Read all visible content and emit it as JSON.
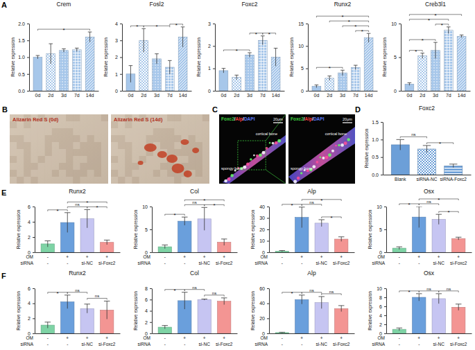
{
  "panel_labels": [
    "A",
    "B",
    "C",
    "D",
    "E",
    "F"
  ],
  "images": [
    {
      "caption": "Alizarin Red S (0d)"
    },
    {
      "caption": "Alizarin Red S (14d)"
    },
    {
      "caption_parts": [
        "Foxc2",
        "/",
        "Alp",
        "/",
        "DAPI"
      ],
      "scale_bar": "20μm",
      "labels": [
        "cortical bone",
        "spongy bone"
      ]
    },
    {
      "caption_parts": [
        "Foxc2",
        "/",
        "Alp",
        "/",
        "DAPI"
      ],
      "scale_bar": "20μm",
      "labels": [
        "cortical bone",
        "spongy bone"
      ]
    }
  ],
  "chart_data": [
    {
      "type": "bar",
      "title": "Crem",
      "y_label": "Relative expression",
      "categories": [
        "0d",
        "2d",
        "3d",
        "7d",
        "14d"
      ],
      "values": [
        1.0,
        1.1,
        1.2,
        1.22,
        1.6
      ],
      "errors": [
        0.05,
        0.3,
        0.05,
        0.05,
        0.15
      ],
      "color": "#a7c7ea",
      "ylim": [
        0,
        2
      ],
      "yticks": [
        {
          "value": 0,
          "label": "0.0"
        },
        {
          "value": 0.5,
          "label": "0.5"
        },
        {
          "value": 1,
          "label": "1.0"
        },
        {
          "value": 1.5,
          "label": "1.5"
        },
        {
          "value": 2,
          "label": "2.0"
        }
      ],
      "annotations": [
        {
          "from": 0,
          "to": 4,
          "text": "*"
        }
      ]
    },
    {
      "type": "bar",
      "title": "Fosl2",
      "y_label": "Relative expression",
      "categories": [
        "0d",
        "2d",
        "3d",
        "7d",
        "14d"
      ],
      "values": [
        1.0,
        3.0,
        1.9,
        1.4,
        3.2
      ],
      "errors": [
        0.5,
        0.7,
        0.3,
        0.4,
        0.6
      ],
      "color": "#a7c7ea",
      "ylim": [
        0,
        4
      ],
      "yticks": [
        0,
        1,
        2,
        3,
        4
      ],
      "annotations": [
        {
          "from": 0,
          "to": 1,
          "text": "*"
        },
        {
          "from": 1,
          "to": 3,
          "text": "*"
        },
        {
          "from": 3,
          "to": 4,
          "text": "*"
        }
      ]
    },
    {
      "type": "bar",
      "title": "Foxc2",
      "y_label": "Relative expression",
      "categories": [
        "0d",
        "2d",
        "3d",
        "7d",
        "14d"
      ],
      "values": [
        0.9,
        0.6,
        1.6,
        2.25,
        1.5
      ],
      "errors": [
        0.1,
        0.1,
        0.1,
        0.2,
        0.4
      ],
      "color": "#a7c7ea",
      "ylim": [
        0,
        3
      ],
      "yticks": [
        0,
        1,
        2,
        3
      ],
      "annotations": [
        {
          "from": 0,
          "to": 2,
          "text": "*"
        },
        {
          "from": 2,
          "to": 3,
          "text": "*"
        },
        {
          "from": 3,
          "to": 4,
          "text": "*"
        }
      ]
    },
    {
      "type": "bar",
      "title": "Runx2",
      "y_label": "Relative expression",
      "categories": [
        "0d",
        "2d",
        "3d",
        "7d",
        "14d"
      ],
      "values": [
        1.0,
        2.8,
        4.0,
        5.2,
        11.8
      ],
      "errors": [
        0.3,
        0.5,
        0.6,
        0.5,
        1.0
      ],
      "color": "#a7c7ea",
      "ylim": [
        0,
        15
      ],
      "yticks": [
        0,
        5,
        10,
        15
      ],
      "annotations": [
        {
          "from": 3,
          "to": 4,
          "text": "*"
        },
        {
          "from": 2,
          "to": 4,
          "text": "*"
        },
        {
          "from": 0,
          "to": 2,
          "text": "*"
        },
        {
          "from": 1,
          "to": 4,
          "text": "*"
        },
        {
          "from": 0,
          "to": 4,
          "text": "*"
        }
      ]
    },
    {
      "type": "bar",
      "title": "Creb3l1",
      "y_label": "Relative expression",
      "categories": [
        "0d",
        "2d",
        "3d",
        "7d",
        "14d"
      ],
      "values": [
        1.0,
        5.2,
        6.0,
        9.0,
        8.1
      ],
      "errors": [
        0.2,
        0.4,
        1.2,
        0.5,
        0.2
      ],
      "color": "#a7c7ea",
      "ylim": [
        0,
        10
      ],
      "yticks": [
        0,
        5,
        10
      ],
      "annotations": [
        {
          "from": 0,
          "to": 1,
          "text": "*"
        },
        {
          "from": 2,
          "to": 3,
          "text": "*"
        },
        {
          "from": 0,
          "to": 2,
          "text": "*"
        },
        {
          "from": 0,
          "to": 3,
          "text": "*"
        },
        {
          "from": 0,
          "to": 4,
          "text": "*"
        }
      ]
    },
    {
      "type": "bar",
      "title": "Foxc2",
      "y_label": "Relative expression",
      "categories": [
        "Blank",
        "siRNA-NC",
        "siRNA-Foxc2"
      ],
      "values": [
        0.85,
        0.73,
        0.25
      ],
      "errors": [
        0.15,
        0.1,
        0.05
      ],
      "color": "#6c9fd8",
      "ylim": [
        0,
        1.5
      ],
      "yticks": [
        {
          "value": 0,
          "label": "0.0"
        },
        {
          "value": 0.5,
          "label": "0.5"
        },
        {
          "value": 1,
          "label": "1.0"
        },
        {
          "value": 1.5,
          "label": "1.5"
        }
      ],
      "annotations": [
        {
          "from": 0,
          "to": 1,
          "text": "ns"
        },
        {
          "from": 1,
          "to": 2,
          "text": "*"
        }
      ]
    },
    {
      "type": "bar",
      "title": "Runx2",
      "y_label": "Relative expression",
      "x_rows": [
        {
          "label": "OM",
          "values": [
            "-",
            "+",
            "+",
            "+"
          ]
        },
        {
          "label": "siRNA",
          "values": [
            "-",
            "-",
            "si-NC",
            "si-Foxc2"
          ]
        }
      ],
      "values": [
        1.1,
        3.9,
        4.4,
        1.3
      ],
      "errors": [
        0.4,
        1.3,
        1.2,
        0.3
      ],
      "colors": [
        "#7ed3a5",
        "#6a9fdc",
        "#c6c5f2",
        "#f39593"
      ],
      "ylim": [
        0,
        6
      ],
      "yticks": [
        0,
        2,
        4,
        6
      ],
      "annotations": [
        {
          "from": 0,
          "to": 1,
          "text": "*"
        },
        {
          "from": 1,
          "to": 2,
          "text": "ns"
        },
        {
          "from": 2,
          "to": 3,
          "text": "*"
        },
        {
          "from": 1,
          "to": 3,
          "text": "*"
        }
      ]
    },
    {
      "type": "bar",
      "title": "Col",
      "y_label": "Relative expression",
      "x_rows": [
        {
          "label": "OM",
          "values": [
            "-",
            "+",
            "+",
            "+"
          ]
        },
        {
          "label": "siRNA",
          "values": [
            "-",
            "-",
            "si-NC",
            "si-Foxc2"
          ]
        }
      ],
      "values": [
        1.2,
        6.8,
        7.3,
        2.2
      ],
      "errors": [
        0.4,
        0.9,
        2.5,
        0.7
      ],
      "colors": [
        "#7ed3a5",
        "#6a9fdc",
        "#c6c5f2",
        "#f39593"
      ],
      "ylim": [
        0,
        10
      ],
      "yticks": [
        0,
        5,
        10
      ],
      "annotations": [
        {
          "from": 0,
          "to": 1,
          "text": "*"
        },
        {
          "from": 1,
          "to": 2,
          "text": "ns"
        },
        {
          "from": 2,
          "to": 3,
          "text": "*"
        },
        {
          "from": 1,
          "to": 3,
          "text": "*"
        }
      ]
    },
    {
      "type": "bar",
      "title": "Alp",
      "y_label": "Relative expression",
      "x_rows": [
        {
          "label": "OM",
          "values": [
            "-",
            "+",
            "+",
            "+"
          ]
        },
        {
          "label": "siRNA",
          "values": [
            "-",
            "-",
            "si-NC",
            "si-Foxc2"
          ]
        }
      ],
      "values": [
        1.0,
        30.5,
        25.5,
        11.5
      ],
      "errors": [
        0.5,
        9.0,
        3.0,
        2.0
      ],
      "colors": [
        "#7ed3a5",
        "#6a9fdc",
        "#c6c5f2",
        "#f39593"
      ],
      "ylim": [
        0,
        40
      ],
      "yticks": [
        0,
        10,
        20,
        30,
        40
      ],
      "annotations": [
        {
          "from": 0,
          "to": 1,
          "text": "*"
        },
        {
          "from": 1,
          "to": 2,
          "text": "ns"
        },
        {
          "from": 2,
          "to": 3,
          "text": "*"
        },
        {
          "from": 1,
          "to": 3,
          "text": "*"
        }
      ]
    },
    {
      "type": "bar",
      "title": "Osx",
      "y_label": "Relative expression",
      "x_rows": [
        {
          "label": "OM",
          "values": [
            "-",
            "+",
            "+",
            "+"
          ]
        },
        {
          "label": "siRNA",
          "values": [
            "-",
            "-",
            "si-NC",
            "si-Foxc2"
          ]
        }
      ],
      "values": [
        0.9,
        7.7,
        7.2,
        3.0
      ],
      "errors": [
        0.3,
        2.3,
        1.1,
        0.3
      ],
      "colors": [
        "#7ed3a5",
        "#6a9fdc",
        "#c6c5f2",
        "#f39593"
      ],
      "ylim": [
        0,
        10
      ],
      "yticks": [
        0,
        5,
        10
      ],
      "annotations": [
        {
          "from": 0,
          "to": 1,
          "text": "*"
        },
        {
          "from": 1,
          "to": 2,
          "text": "ns"
        },
        {
          "from": 2,
          "to": 3,
          "text": "*"
        },
        {
          "from": 1,
          "to": 3,
          "text": "*"
        }
      ]
    },
    {
      "type": "bar",
      "title": "Runx2",
      "y_label": "Relative expression",
      "x_rows": [
        {
          "label": "OM",
          "values": [
            "-",
            "+",
            "+",
            "+"
          ]
        },
        {
          "label": "siRNA",
          "values": [
            "-",
            "-",
            "si-NC",
            "si-Foxc2"
          ]
        }
      ],
      "values": [
        1.1,
        4.2,
        3.3,
        3.1
      ],
      "errors": [
        0.4,
        0.9,
        0.6,
        1.2
      ],
      "colors": [
        "#7ed3a5",
        "#6a9fdc",
        "#c6c5f2",
        "#f39593"
      ],
      "ylim": [
        0,
        6
      ],
      "yticks": [
        0,
        2,
        4,
        6
      ],
      "annotations": [
        {
          "from": 0,
          "to": 1,
          "text": "*"
        },
        {
          "from": 1,
          "to": 2,
          "text": "ns"
        },
        {
          "from": 2,
          "to": 3,
          "text": "ns"
        }
      ]
    },
    {
      "type": "bar",
      "title": "Col",
      "y_label": "Relative expression",
      "x_rows": [
        {
          "label": "OM",
          "values": [
            "-",
            "+",
            "+",
            "+"
          ]
        },
        {
          "label": "siRNA",
          "values": [
            "-",
            "-",
            "si-NC",
            "si-Foxc2"
          ]
        }
      ],
      "values": [
        1.1,
        5.8,
        6.0,
        5.7
      ],
      "errors": [
        0.3,
        1.5,
        0.1,
        0.6
      ],
      "colors": [
        "#7ed3a5",
        "#6a9fdc",
        "#c6c5f2",
        "#f39593"
      ],
      "ylim": [
        0,
        8
      ],
      "yticks": [
        0,
        2,
        4,
        6,
        8
      ],
      "annotations": [
        {
          "from": 0,
          "to": 1,
          "text": "*"
        },
        {
          "from": 1,
          "to": 2,
          "text": "ns"
        },
        {
          "from": 2,
          "to": 3,
          "text": "ns"
        }
      ]
    },
    {
      "type": "bar",
      "title": "Alp",
      "y_label": "Relative expression",
      "x_rows": [
        {
          "label": "OM",
          "values": [
            "-",
            "+",
            "+",
            "+"
          ]
        },
        {
          "label": "siRNA",
          "values": [
            "-",
            "-",
            "si-NC",
            "si-Foxc2"
          ]
        }
      ],
      "values": [
        1.0,
        45.0,
        41.0,
        33.0
      ],
      "errors": [
        0.5,
        6.0,
        8.0,
        4.0
      ],
      "colors": [
        "#7ed3a5",
        "#6a9fdc",
        "#c6c5f2",
        "#f39593"
      ],
      "ylim": [
        0,
        60
      ],
      "yticks": [
        0,
        20,
        40,
        60
      ],
      "annotations": [
        {
          "from": 0,
          "to": 1,
          "text": "*"
        },
        {
          "from": 1,
          "to": 2,
          "text": "ns"
        },
        {
          "from": 2,
          "to": 3,
          "text": "ns"
        }
      ]
    },
    {
      "type": "bar",
      "title": "Osx",
      "y_label": "Relative expression",
      "x_rows": [
        {
          "label": "OM",
          "values": [
            "-",
            "+",
            "+",
            "+"
          ]
        },
        {
          "label": "siRNA",
          "values": [
            "-",
            "-",
            "si-NC",
            "si-Foxc2"
          ]
        }
      ],
      "values": [
        0.9,
        8.0,
        7.7,
        5.8
      ],
      "errors": [
        0.3,
        0.8,
        1.1,
        0.7
      ],
      "colors": [
        "#7ed3a5",
        "#6a9fdc",
        "#c6c5f2",
        "#f39593"
      ],
      "ylim": [
        0,
        10
      ],
      "yticks": [
        0,
        2,
        4,
        6,
        8,
        10
      ],
      "annotations": [
        {
          "from": 0,
          "to": 1,
          "text": "*"
        },
        {
          "from": 1,
          "to": 2,
          "text": "ns"
        },
        {
          "from": 2,
          "to": 3,
          "text": "ns"
        }
      ]
    }
  ]
}
